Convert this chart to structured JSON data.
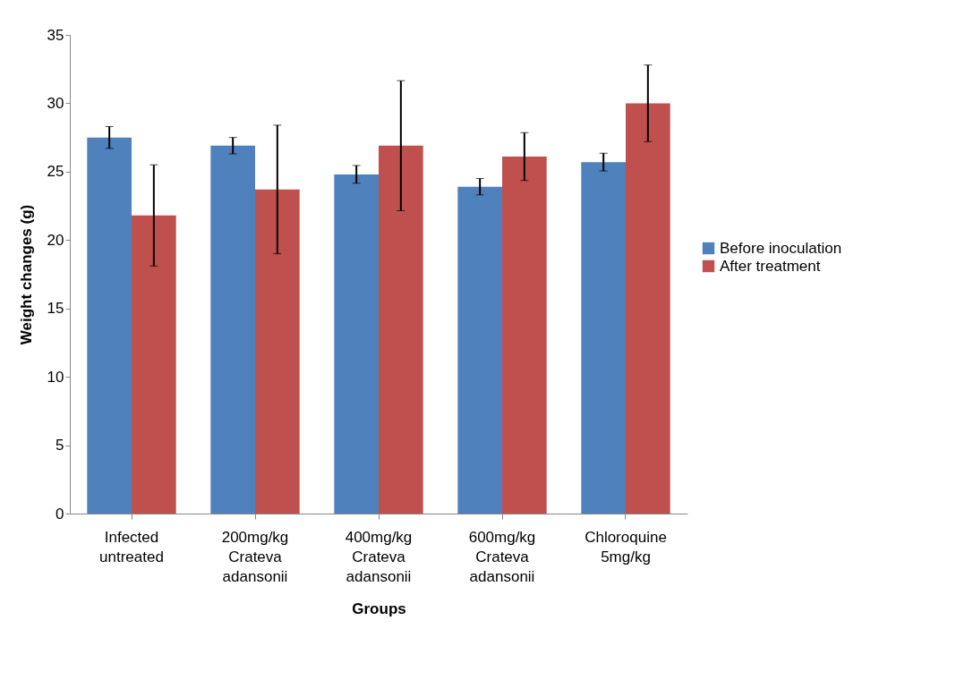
{
  "chart_data": {
    "type": "bar",
    "xlabel": "Groups",
    "ylabel": "Weight changes (g)",
    "categories": [
      "Infected untreated",
      "200mg/kg Crateva adansonii",
      "400mg/kg Crateva adansonii",
      "600mg/kg Crateva adansonii",
      "Chloroquine 5mg/kg"
    ],
    "series": [
      {
        "name": "Before inoculation",
        "color": "#4f81bd",
        "values": [
          27.5,
          26.9,
          24.8,
          23.9,
          25.7
        ],
        "errors": [
          0.8,
          0.6,
          0.65,
          0.6,
          0.65
        ]
      },
      {
        "name": "After treatment",
        "color": "#c0504d",
        "values": [
          21.8,
          23.7,
          26.9,
          26.1,
          30.0
        ],
        "errors": [
          3.7,
          4.7,
          4.75,
          1.75,
          2.8
        ]
      }
    ],
    "ylim": [
      0,
      35
    ],
    "yticks": [
      0,
      5,
      10,
      15,
      20,
      25,
      30,
      35
    ],
    "grid": false,
    "legend": "right"
  }
}
